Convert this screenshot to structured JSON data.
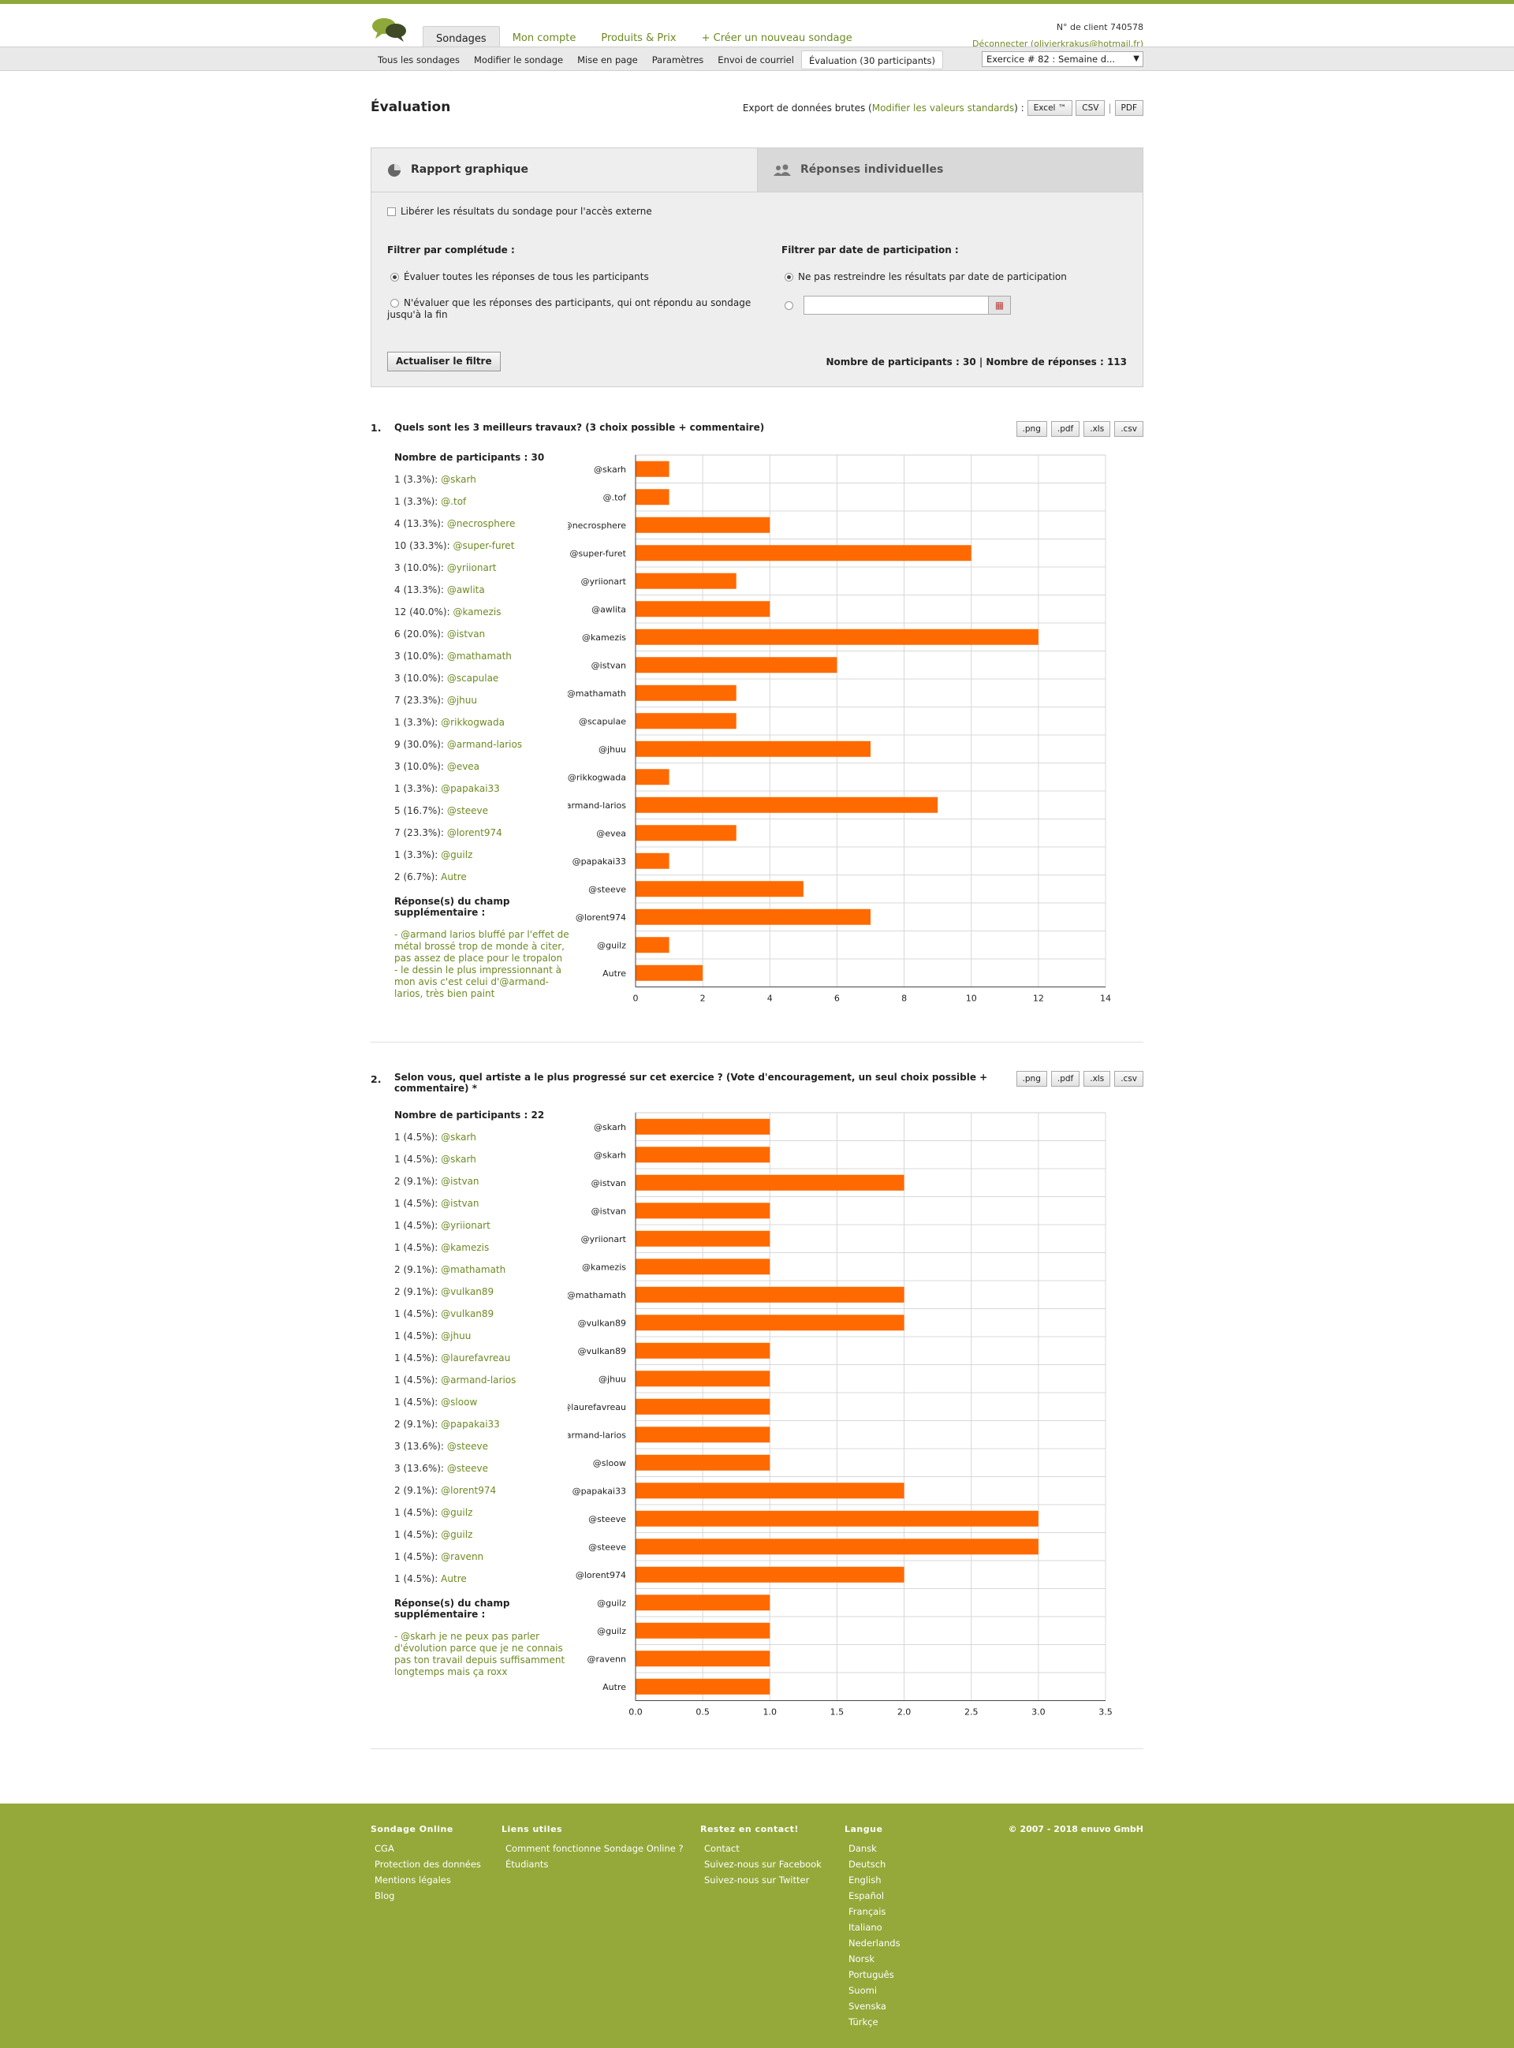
{
  "header": {
    "tabs": [
      "Sondages",
      "Mon compte",
      "Produits & Prix",
      "+ Créer un nouveau sondage"
    ],
    "client_number": "N° de client 740578",
    "logout": "Déconnecter (olivierkrakus@hotmail.fr)"
  },
  "subnav": {
    "tabs": [
      "Tous les sondages",
      "Modifier le sondage",
      "Mise en page",
      "Paramètres",
      "Envoi de courriel",
      "Évaluation (30 participants)"
    ],
    "exercise_select": "Exercice # 82 : Semaine d..."
  },
  "page": {
    "title": "Évaluation",
    "export_label": "Export de données brutes (",
    "export_link": "Modifier les valeurs standards",
    "export_suffix": ") :",
    "export_buttons": [
      "Excel ™",
      "CSV",
      "PDF"
    ]
  },
  "panel": {
    "tab_graph": "Rapport graphique",
    "tab_individual": "Réponses individuelles",
    "release_label": "Libérer les résultats du sondage pour l'accès externe",
    "filter_completion_title": "Filtrer par complétude :",
    "option_all": "Évaluer toutes les réponses de tous les participants",
    "option_complete": "N'évaluer que les réponses des participants, qui ont répondu au sondage jusqu'à la fin",
    "filter_date_title": "Filtrer par date de participation :",
    "option_no_date": "Ne pas restreindre les résultats par date de participation",
    "date_value": "",
    "update_button": "Actualiser le filtre",
    "counts": "Nombre de participants : 30 | Nombre de réponses : 113"
  },
  "question_buttons": [
    ".png",
    ".pdf",
    ".xls",
    ".csv"
  ],
  "questions": [
    {
      "number": "1.",
      "title": "Quels sont les 3 meilleurs travaux? (3 choix possible + commentaire)",
      "participants": "Nombre de participants : 30",
      "rows": [
        {
          "count": "1 (3.3%):",
          "label": "@skarh"
        },
        {
          "count": "1 (3.3%):",
          "label": "@.tof"
        },
        {
          "count": "4 (13.3%):",
          "label": "@necrosphere"
        },
        {
          "count": "10 (33.3%):",
          "label": "@super-furet"
        },
        {
          "count": "3 (10.0%):",
          "label": "@yriionart"
        },
        {
          "count": "4 (13.3%):",
          "label": "@awlita"
        },
        {
          "count": "12 (40.0%):",
          "label": "@kamezis"
        },
        {
          "count": "6 (20.0%):",
          "label": "@istvan"
        },
        {
          "count": "3 (10.0%):",
          "label": "@mathamath"
        },
        {
          "count": "3 (10.0%):",
          "label": "@scapulae"
        },
        {
          "count": "7 (23.3%):",
          "label": "@jhuu"
        },
        {
          "count": "1 (3.3%):",
          "label": "@rikkogwada"
        },
        {
          "count": "9 (30.0%):",
          "label": "@armand-larios"
        },
        {
          "count": "3 (10.0%):",
          "label": "@evea"
        },
        {
          "count": "1 (3.3%):",
          "label": "@papakai33"
        },
        {
          "count": "5 (16.7%):",
          "label": "@steeve"
        },
        {
          "count": "7 (23.3%):",
          "label": "@lorent974"
        },
        {
          "count": "1 (3.3%):",
          "label": "@guilz"
        },
        {
          "count": "2 (6.7%):",
          "label": "Autre"
        }
      ],
      "extra_title": "Réponse(s) du champ supplémentaire :",
      "extra_comments": [
        "- @armand larios bluffé par l'effet de métal brossé trop de monde à citer, pas assez de place pour le tropalon",
        "- le dessin le plus impressionnant à mon avis c'est celui d'@armand-larios, très bien paint"
      ]
    },
    {
      "number": "2.",
      "title": "Selon vous, quel artiste a le plus progressé sur cet exercice ? (Vote d'encouragement, un seul choix possible + commentaire) *",
      "participants": "Nombre de participants : 22",
      "rows": [
        {
          "count": "1 (4.5%):",
          "label": "@skarh"
        },
        {
          "count": "1 (4.5%):",
          "label": "@skarh"
        },
        {
          "count": "2 (9.1%):",
          "label": "@istvan"
        },
        {
          "count": "1 (4.5%):",
          "label": "@istvan"
        },
        {
          "count": "1 (4.5%):",
          "label": "@yriionart"
        },
        {
          "count": "1 (4.5%):",
          "label": "@kamezis"
        },
        {
          "count": "2 (9.1%):",
          "label": "@mathamath"
        },
        {
          "count": "2 (9.1%):",
          "label": "@vulkan89"
        },
        {
          "count": "1 (4.5%):",
          "label": "@vulkan89"
        },
        {
          "count": "1 (4.5%):",
          "label": "@jhuu"
        },
        {
          "count": "1 (4.5%):",
          "label": "@laurefavreau"
        },
        {
          "count": "1 (4.5%):",
          "label": "@armand-larios"
        },
        {
          "count": "1 (4.5%):",
          "label": "@sloow"
        },
        {
          "count": "2 (9.1%):",
          "label": "@papakai33"
        },
        {
          "count": "3 (13.6%):",
          "label": "@steeve"
        },
        {
          "count": "3 (13.6%):",
          "label": "@steeve"
        },
        {
          "count": "2 (9.1%):",
          "label": "@lorent974"
        },
        {
          "count": "1 (4.5%):",
          "label": "@guilz"
        },
        {
          "count": "1 (4.5%):",
          "label": "@guilz"
        },
        {
          "count": "1 (4.5%):",
          "label": "@ravenn"
        },
        {
          "count": "1 (4.5%):",
          "label": "Autre"
        }
      ],
      "extra_title": "Réponse(s) du champ supplémentaire :",
      "extra_comments": [
        "- @skarh je ne peux pas parler d'évolution parce que je ne connais pas ton travail depuis suffisamment longtemps mais ça roxx"
      ]
    }
  ],
  "chart_data": [
    {
      "type": "bar",
      "orientation": "horizontal",
      "categories": [
        "@skarh",
        "@.tof",
        "@necrosphere",
        "@super-furet",
        "@yriionart",
        "@awlita",
        "@kamezis",
        "@istvan",
        "@mathamath",
        "@scapulae",
        "@jhuu",
        "@rikkogwada",
        "@armand-larios",
        "@evea",
        "@papakai33",
        "@steeve",
        "@lorent974",
        "@guilz",
        "Autre"
      ],
      "values": [
        1,
        1,
        4,
        10,
        3,
        4,
        12,
        6,
        3,
        3,
        7,
        1,
        9,
        3,
        1,
        5,
        7,
        1,
        2
      ],
      "xlim": [
        0,
        14
      ],
      "ticks": [
        "0",
        "2",
        "4",
        "6",
        "8",
        "10",
        "12",
        "14"
      ],
      "color": "#ff6a00",
      "grid": true
    },
    {
      "type": "bar",
      "orientation": "horizontal",
      "categories": [
        "@skarh",
        "@skarh",
        "@istvan",
        "@istvan",
        "@yriionart",
        "@kamezis",
        "@mathamath",
        "@vulkan89",
        "@vulkan89",
        "@jhuu",
        "@laurefavreau",
        "@armand-larios",
        "@sloow",
        "@papakai33",
        "@steeve",
        "@steeve",
        "@lorent974",
        "@guilz",
        "@guilz",
        "@ravenn",
        "Autre"
      ],
      "values": [
        1,
        1,
        2,
        1,
        1,
        1,
        2,
        2,
        1,
        1,
        1,
        1,
        1,
        2,
        3,
        3,
        2,
        1,
        1,
        1,
        1
      ],
      "xlim": [
        0,
        3.5
      ],
      "ticks": [
        "0.0",
        "0.5",
        "1.0",
        "1.5",
        "2.0",
        "2.5",
        "3.0",
        "3.5"
      ],
      "color": "#ff6a00",
      "grid": true
    }
  ],
  "footer": {
    "columns": [
      {
        "title": "Sondage Online",
        "links": [
          "CGA",
          "Protection des données",
          "Mentions légales",
          "Blog"
        ]
      },
      {
        "title": "Liens utiles",
        "links": [
          "Comment fonctionne Sondage Online ?",
          "Étudiants"
        ]
      },
      {
        "title": "Restez en contact!",
        "links": [
          "Contact",
          "Suivez-nous sur Facebook",
          "Suivez-nous sur Twitter"
        ]
      },
      {
        "title": "Langue",
        "links": [
          "Dansk",
          "Deutsch",
          "English",
          "Español",
          "Français",
          "Italiano",
          "Nederlands",
          "Norsk",
          "Português",
          "Suomi",
          "Svenska",
          "Türkçe"
        ]
      }
    ],
    "copyright": "© 2007 - 2018 enuvo GmbH"
  }
}
